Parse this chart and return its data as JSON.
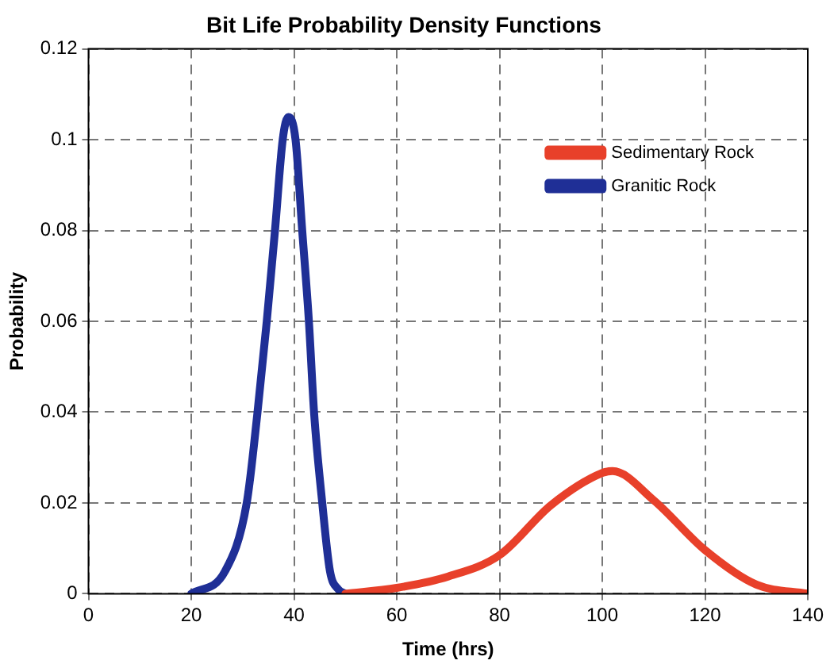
{
  "chart_data": {
    "type": "line",
    "title": "Bit Life Probability Density Functions",
    "xlabel": "Time (hrs)",
    "ylabel": "Probability",
    "xlim": [
      0,
      140
    ],
    "xticks": [
      0,
      20,
      40,
      60,
      80,
      100,
      120,
      140
    ],
    "ylim": [
      0,
      0.12
    ],
    "yticks": [
      0,
      0.02,
      0.04,
      0.06,
      0.08,
      0.1,
      0.12
    ],
    "grid": true,
    "legend": "top right",
    "marker": "none",
    "series": [
      {
        "name": "Sedimentary Rock",
        "color": "#e8402a",
        "x": [
          50,
          60,
          70,
          80,
          90,
          100,
          102,
          110,
          120,
          130,
          140
        ],
        "values": [
          0,
          0.0013,
          0.0038,
          0.0085,
          0.0195,
          0.0266,
          0.027,
          0.0206,
          0.0096,
          0.002,
          0
        ]
      },
      {
        "name": "Granitic Rock",
        "color": "#1f2f96",
        "x": [
          20,
          26.6,
          30.8,
          32.9,
          34.7,
          36.3,
          37.8,
          38.9,
          40.3,
          41.6,
          42.9,
          43.9,
          45.5,
          47,
          48.6,
          50
        ],
        "values": [
          0,
          0.005,
          0.02,
          0.04,
          0.06,
          0.08,
          0.1,
          0.105,
          0.1,
          0.08,
          0.06,
          0.04,
          0.02,
          0.005,
          0.001,
          0
        ]
      }
    ]
  }
}
